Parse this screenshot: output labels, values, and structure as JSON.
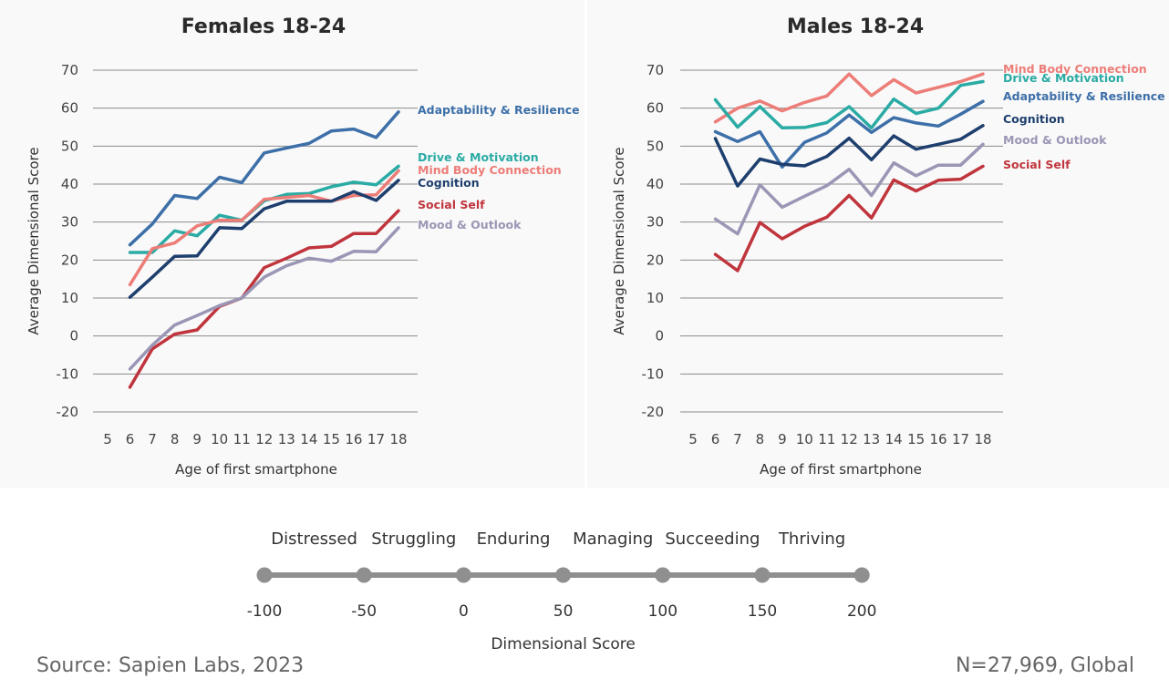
{
  "chart_data": [
    {
      "type": "line",
      "title": "Females 18-24",
      "xlabel": "Age of first smartphone",
      "ylabel": "Average Dimensional Score",
      "x": [
        6,
        7,
        8,
        9,
        10,
        11,
        12,
        13,
        14,
        15,
        16,
        17,
        18
      ],
      "xticks": [
        "5",
        "6",
        "7",
        "8",
        "9",
        "10",
        "11",
        "12",
        "13",
        "14",
        "15",
        "16",
        "17",
        "18"
      ],
      "yticks": [
        "70",
        "60",
        "50",
        "40",
        "30",
        "20",
        "10",
        "0",
        "-10",
        "-20"
      ],
      "ylim": [
        -20,
        70
      ],
      "grid": true,
      "legend": "right, direct labels",
      "series": [
        {
          "name": "Adaptability & Resilience",
          "color": "#3d6fa8",
          "values": [
            24,
            29.5,
            37,
            36.2,
            41.8,
            40.4,
            48.2,
            49.5,
            50.7,
            54,
            54.5,
            52.3,
            59
          ]
        },
        {
          "name": "Drive & Motivation",
          "color": "#2aaba4",
          "values": [
            22,
            22,
            27.7,
            26.4,
            31.8,
            30.5,
            35.6,
            37.3,
            37.5,
            39.3,
            40.5,
            39.8,
            44.7
          ]
        },
        {
          "name": "Mind Body Connection",
          "color": "#ec7d78",
          "values": [
            13.5,
            23,
            24.5,
            29,
            30.5,
            30.5,
            36,
            36.5,
            37,
            35.5,
            37,
            37.2,
            43.5
          ]
        },
        {
          "name": "Cognition",
          "color": "#1e3f6e",
          "values": [
            10.2,
            15.5,
            21,
            21.1,
            28.5,
            28.3,
            33.5,
            35.5,
            35.5,
            35.5,
            38,
            35.7,
            41
          ]
        },
        {
          "name": "Social Self",
          "color": "#c0353d",
          "values": [
            -13.5,
            -3.4,
            0.5,
            1.6,
            7.8,
            10,
            18,
            20.5,
            23.2,
            23.6,
            27,
            27,
            33
          ]
        },
        {
          "name": "Mood & Outlook",
          "color": "#9a96b5",
          "values": [
            -8.7,
            -2.4,
            2.9,
            5.4,
            8,
            10,
            15.5,
            18.5,
            20.5,
            19.7,
            22.3,
            22.2,
            28.5
          ]
        }
      ]
    },
    {
      "type": "line",
      "title": "Males 18-24",
      "xlabel": "Age of first smartphone",
      "ylabel": "Average Dimensional Score",
      "x": [
        6,
        7,
        8,
        9,
        10,
        11,
        12,
        13,
        14,
        15,
        16,
        17,
        18
      ],
      "xticks": [
        "5",
        "6",
        "7",
        "8",
        "9",
        "10",
        "11",
        "12",
        "13",
        "14",
        "15",
        "16",
        "17",
        "18"
      ],
      "yticks": [
        "70",
        "60",
        "50",
        "40",
        "30",
        "20",
        "10",
        "0",
        "-10",
        "-20"
      ],
      "ylim": [
        -20,
        70
      ],
      "grid": true,
      "legend": "right, direct labels",
      "series": [
        {
          "name": "Mind Body Connection",
          "color": "#ec7d78",
          "values": [
            56.4,
            60,
            61.9,
            59.3,
            61.5,
            63.2,
            69,
            63.3,
            67.5,
            64,
            65.5,
            67,
            69
          ]
        },
        {
          "name": "Drive & Motivation",
          "color": "#2aaba4",
          "values": [
            62.2,
            55,
            60.4,
            54.8,
            54.9,
            56.2,
            60.4,
            54.8,
            62.4,
            58.6,
            60,
            66,
            67
          ]
        },
        {
          "name": "Adaptability & Resilience",
          "color": "#3d6fa8",
          "values": [
            53.8,
            51.2,
            53.8,
            44.5,
            51,
            53.5,
            58.2,
            53.6,
            57.5,
            56.1,
            55.3,
            58.4,
            61.8
          ]
        },
        {
          "name": "Cognition",
          "color": "#1e3f6e",
          "values": [
            52,
            39.5,
            46.6,
            45.2,
            44.8,
            47.3,
            52.1,
            46.4,
            52.7,
            49.2,
            50.5,
            51.8,
            55.4
          ]
        },
        {
          "name": "Mood & Outlook",
          "color": "#9a96b5",
          "values": [
            30.8,
            26.9,
            39.8,
            33.9,
            36.8,
            39.6,
            43.9,
            37,
            45.6,
            42.2,
            45,
            45,
            50.5
          ]
        },
        {
          "name": "Social Self",
          "color": "#c0353d",
          "values": [
            21.5,
            17.2,
            29.9,
            25.6,
            28.9,
            31.3,
            37,
            31.1,
            41.1,
            38.2,
            41,
            41.3,
            44.7
          ]
        }
      ]
    }
  ],
  "scale": {
    "categories": [
      "Distressed",
      "Struggling",
      "Enduring",
      "Managing",
      "Succeeding",
      "Thriving"
    ],
    "ticks": [
      "-100",
      "-50",
      "0",
      "50",
      "100",
      "150",
      "200"
    ],
    "xlabel": "Dimensional Score",
    "line_color": "#8f8f8f"
  },
  "footer": {
    "source": "Source: Sapien Labs, 2023",
    "n_note": "N=27,969, Global"
  }
}
